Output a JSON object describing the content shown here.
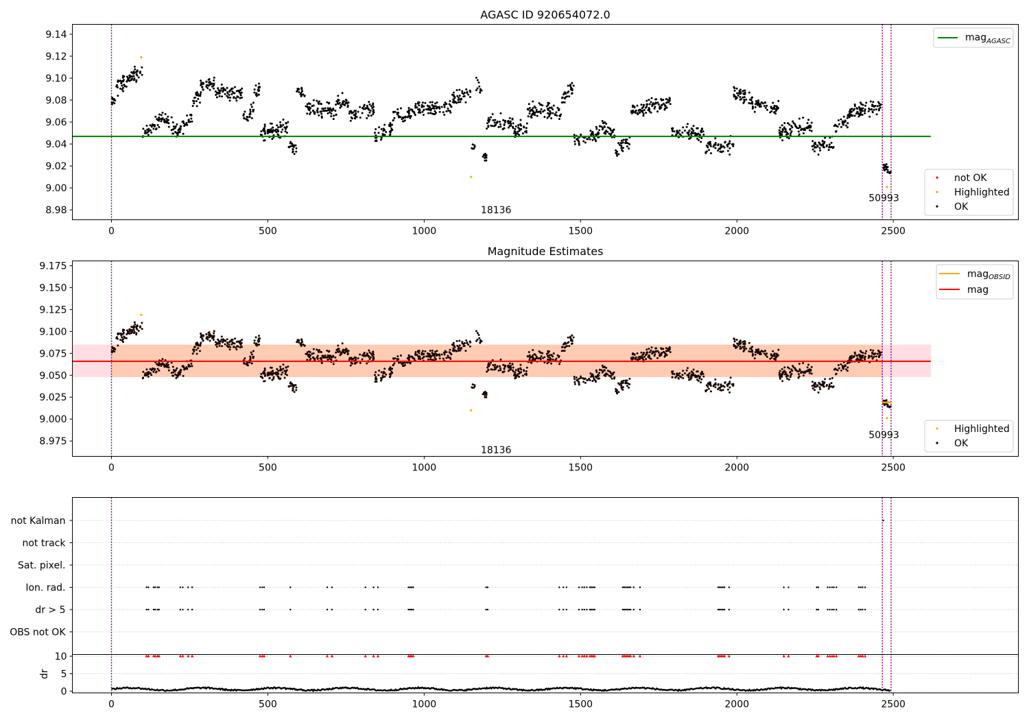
{
  "colors": {
    "ok": "#000000",
    "highlighted": "#ffa500",
    "not_ok": "#ff0000",
    "mag_agasc": "#008000",
    "mag_obsid": "#ffa500",
    "mag": "#ff0000",
    "vline": "#800080",
    "band_orange": "#ffccb3",
    "band_pink": "#ffdde2"
  },
  "chart_data": [
    {
      "type": "scatter",
      "title": "AGASC ID 920654072.0",
      "xlim": [
        -125,
        2900
      ],
      "ylim": [
        8.971,
        9.149
      ],
      "xticks": [
        "0",
        "500",
        "1000",
        "1500",
        "2000",
        "2500"
      ],
      "xtick_values": [
        0,
        500,
        1000,
        1500,
        2000,
        2500
      ],
      "yticks": [
        "8.98",
        "9.00",
        "9.02",
        "9.04",
        "9.06",
        "9.08",
        "9.10",
        "9.12",
        "9.14"
      ],
      "ytick_values": [
        8.98,
        9.0,
        9.02,
        9.04,
        9.06,
        9.08,
        9.1,
        9.12,
        9.14
      ],
      "hline": {
        "name": "mag_AGASC",
        "y": 9.047,
        "x": [
          -125,
          2620
        ]
      },
      "vlines": [
        0,
        2465,
        2493
      ],
      "annotations": [
        {
          "text": "18136",
          "x": 1230,
          "y": 8.98
        },
        {
          "text": "50993",
          "x": 2470,
          "y": 8.991
        }
      ],
      "legend_top": {
        "position": "top-right",
        "entries": [
          "mag",
          "AGASC"
        ]
      },
      "legend_bottom": {
        "position": "bottom-right",
        "entries": [
          "not OK",
          "Highlighted",
          "OK"
        ]
      },
      "highlighted_points": [
        [
          95,
          9.119
        ],
        [
          1150,
          9.01
        ],
        [
          2480,
          9.001
        ]
      ],
      "segments": [
        {
          "x0": 0,
          "x1": 12,
          "y0": 9.077,
          "y1": 9.08,
          "s": 0.004,
          "n": 10
        },
        {
          "x0": 12,
          "x1": 100,
          "y0": 9.09,
          "y1": 9.108,
          "s": 0.006,
          "n": 70
        },
        {
          "x0": 100,
          "x1": 165,
          "y0": 9.05,
          "y1": 9.064,
          "s": 0.005,
          "n": 45
        },
        {
          "x0": 165,
          "x1": 220,
          "y0": 9.062,
          "y1": 9.05,
          "s": 0.006,
          "n": 40
        },
        {
          "x0": 220,
          "x1": 260,
          "y0": 9.058,
          "y1": 9.062,
          "s": 0.007,
          "n": 25
        },
        {
          "x0": 260,
          "x1": 285,
          "y0": 9.08,
          "y1": 9.086,
          "s": 0.006,
          "n": 18
        },
        {
          "x0": 285,
          "x1": 330,
          "y0": 9.093,
          "y1": 9.095,
          "s": 0.005,
          "n": 40
        },
        {
          "x0": 330,
          "x1": 420,
          "y0": 9.088,
          "y1": 9.086,
          "s": 0.005,
          "n": 65
        },
        {
          "x0": 420,
          "x1": 455,
          "y0": 9.066,
          "y1": 9.07,
          "s": 0.007,
          "n": 25
        },
        {
          "x0": 455,
          "x1": 475,
          "y0": 9.085,
          "y1": 9.09,
          "s": 0.006,
          "n": 18
        },
        {
          "x0": 475,
          "x1": 565,
          "y0": 9.05,
          "y1": 9.055,
          "s": 0.006,
          "n": 70
        },
        {
          "x0": 565,
          "x1": 592,
          "y0": 9.04,
          "y1": 9.036,
          "s": 0.005,
          "n": 20
        },
        {
          "x0": 592,
          "x1": 620,
          "y0": 9.088,
          "y1": 9.084,
          "s": 0.004,
          "n": 18
        },
        {
          "x0": 620,
          "x1": 720,
          "y0": 9.073,
          "y1": 9.07,
          "s": 0.006,
          "n": 70
        },
        {
          "x0": 720,
          "x1": 760,
          "y0": 9.077,
          "y1": 9.078,
          "s": 0.006,
          "n": 28
        },
        {
          "x0": 760,
          "x1": 840,
          "y0": 9.065,
          "y1": 9.072,
          "s": 0.006,
          "n": 55
        },
        {
          "x0": 840,
          "x1": 900,
          "y0": 9.045,
          "y1": 9.055,
          "s": 0.006,
          "n": 40
        },
        {
          "x0": 900,
          "x1": 960,
          "y0": 9.062,
          "y1": 9.068,
          "s": 0.007,
          "n": 40
        },
        {
          "x0": 960,
          "x1": 1090,
          "y0": 9.073,
          "y1": 9.072,
          "s": 0.006,
          "n": 90
        },
        {
          "x0": 1090,
          "x1": 1150,
          "y0": 9.08,
          "y1": 9.087,
          "s": 0.006,
          "n": 40
        },
        {
          "x0": 1150,
          "x1": 1165,
          "y0": 9.037,
          "y1": 9.037,
          "s": 0.004,
          "n": 6
        },
        {
          "x0": 1165,
          "x1": 1185,
          "y0": 9.095,
          "y1": 9.09,
          "s": 0.006,
          "n": 10
        },
        {
          "x0": 1185,
          "x1": 1200,
          "y0": 9.03,
          "y1": 9.028,
          "s": 0.004,
          "n": 12
        },
        {
          "x0": 1200,
          "x1": 1285,
          "y0": 9.06,
          "y1": 9.058,
          "s": 0.006,
          "n": 55
        },
        {
          "x0": 1285,
          "x1": 1330,
          "y0": 9.05,
          "y1": 9.056,
          "s": 0.006,
          "n": 30
        },
        {
          "x0": 1330,
          "x1": 1440,
          "y0": 9.072,
          "y1": 9.068,
          "s": 0.006,
          "n": 75
        },
        {
          "x0": 1440,
          "x1": 1480,
          "y0": 9.08,
          "y1": 9.095,
          "s": 0.006,
          "n": 28
        },
        {
          "x0": 1480,
          "x1": 1560,
          "y0": 9.044,
          "y1": 9.05,
          "s": 0.006,
          "n": 50
        },
        {
          "x0": 1560,
          "x1": 1610,
          "y0": 9.058,
          "y1": 9.05,
          "s": 0.006,
          "n": 32
        },
        {
          "x0": 1610,
          "x1": 1660,
          "y0": 9.03,
          "y1": 9.045,
          "s": 0.006,
          "n": 30
        },
        {
          "x0": 1660,
          "x1": 1790,
          "y0": 9.07,
          "y1": 9.078,
          "s": 0.006,
          "n": 90
        },
        {
          "x0": 1790,
          "x1": 1900,
          "y0": 9.05,
          "y1": 9.05,
          "s": 0.006,
          "n": 70
        },
        {
          "x0": 1900,
          "x1": 1990,
          "y0": 9.036,
          "y1": 9.04,
          "s": 0.006,
          "n": 55
        },
        {
          "x0": 1990,
          "x1": 2050,
          "y0": 9.088,
          "y1": 9.08,
          "s": 0.006,
          "n": 45
        },
        {
          "x0": 2050,
          "x1": 2135,
          "y0": 9.076,
          "y1": 9.072,
          "s": 0.005,
          "n": 55
        },
        {
          "x0": 2135,
          "x1": 2240,
          "y0": 9.05,
          "y1": 9.058,
          "s": 0.006,
          "n": 70
        },
        {
          "x0": 2240,
          "x1": 2310,
          "y0": 9.036,
          "y1": 9.042,
          "s": 0.006,
          "n": 45
        },
        {
          "x0": 2310,
          "x1": 2360,
          "y0": 9.055,
          "y1": 9.062,
          "s": 0.006,
          "n": 30
        },
        {
          "x0": 2360,
          "x1": 2465,
          "y0": 9.07,
          "y1": 9.074,
          "s": 0.005,
          "n": 75
        },
        {
          "x0": 2468,
          "x1": 2492,
          "y0": 9.02,
          "y1": 9.016,
          "s": 0.004,
          "n": 20
        }
      ]
    },
    {
      "type": "scatter",
      "title": "Magnitude Estimates",
      "xlim": [
        -125,
        2900
      ],
      "ylim": [
        8.9575,
        9.1805
      ],
      "xticks": [
        "0",
        "500",
        "1000",
        "1500",
        "2000",
        "2500"
      ],
      "xtick_values": [
        0,
        500,
        1000,
        1500,
        2000,
        2500
      ],
      "yticks": [
        "8.975",
        "9.000",
        "9.025",
        "9.050",
        "9.075",
        "9.100",
        "9.125",
        "9.150",
        "9.175"
      ],
      "ytick_values": [
        8.975,
        9.0,
        9.025,
        9.05,
        9.075,
        9.1,
        9.125,
        9.15,
        9.175
      ],
      "mag_line": {
        "name": "mag",
        "y": 9.066,
        "x": [
          -125,
          2620
        ]
      },
      "band": {
        "y0": 9.048,
        "y1": 9.085,
        "x": [
          -125,
          2620
        ]
      },
      "obsid_segments": [
        [
          2465,
          2492,
          9.019
        ]
      ],
      "vlines": [
        0,
        2465,
        2493
      ],
      "annotations": [
        {
          "text": "18136",
          "x": 1230,
          "y": 8.965
        },
        {
          "text": "50993",
          "x": 2470,
          "y": 8.982
        }
      ],
      "legend_top": {
        "position": "top-right",
        "entries": [
          "mag",
          "OBSID",
          "mag"
        ]
      },
      "legend_bottom": {
        "position": "bottom-right",
        "entries": [
          "Highlighted",
          "OK"
        ]
      }
    },
    {
      "type": "scatter",
      "title": "",
      "xlim": [
        -125,
        2900
      ],
      "xticks": [
        "0",
        "500",
        "1000",
        "1500",
        "2000",
        "2500"
      ],
      "xtick_values": [
        0,
        500,
        1000,
        1500,
        2000,
        2500
      ],
      "flag_rows": [
        "not Kalman",
        "not track",
        "Sat. pixel.",
        "Ion. rad.",
        "dr > 5",
        "OBS not OK"
      ],
      "dr_ylabel": "dr",
      "dr_yticks": [
        "0",
        "5",
        "10"
      ],
      "dr_ytick_values": [
        0,
        5,
        10
      ],
      "dr_ylim": [
        -0.5,
        10.5
      ],
      "flag_x": [
        112,
        118,
        135,
        140,
        147,
        152,
        220,
        228,
        245,
        258,
        475,
        482,
        488,
        572,
        690,
        705,
        812,
        838,
        852,
        950,
        955,
        960,
        965,
        1198,
        1203,
        1432,
        1445,
        1455,
        1495,
        1505,
        1512,
        1520,
        1530,
        1535,
        1540,
        1545,
        1635,
        1640,
        1645,
        1650,
        1655,
        1660,
        1670,
        1690,
        1940,
        1945,
        1950,
        1955,
        1960,
        1975,
        2150,
        2165,
        2255,
        2260,
        2290,
        2297,
        2304,
        2310,
        2318,
        2390,
        2396,
        2402,
        2410
      ],
      "not_kalman_x": [
        2468
      ],
      "dr_baseline": 0.6,
      "vlines": [
        0,
        2465,
        2493
      ]
    }
  ]
}
